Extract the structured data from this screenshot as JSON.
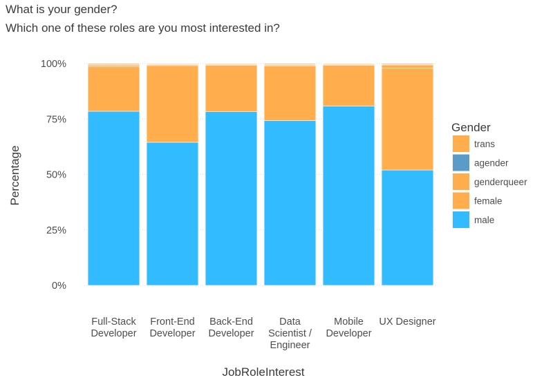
{
  "title_lines": [
    "What is your gender?",
    "Which one of these roles are you most interested in?"
  ],
  "chart_data": {
    "type": "bar",
    "stacked": true,
    "categories": [
      [
        "Full-Stack",
        "Developer"
      ],
      [
        "Front-End",
        "Developer"
      ],
      [
        "Back-End",
        "Developer"
      ],
      [
        "Data",
        "Scientist /",
        "Engineer"
      ],
      [
        "Mobile",
        "Developer"
      ],
      [
        "UX Designer"
      ]
    ],
    "series": [
      {
        "name": "male",
        "color": "#33BBFF",
        "values": [
          78.5,
          64.5,
          78.3,
          74.3,
          80.8,
          52.0
        ]
      },
      {
        "name": "female",
        "color": "#FFAD4D",
        "values": [
          20.2,
          34.6,
          20.9,
          24.6,
          18.4,
          45.9
        ]
      },
      {
        "name": "genderqueer",
        "color": "#FFAD4D",
        "values": [
          0.5,
          0.4,
          0.4,
          0.5,
          0.4,
          1.5
        ]
      },
      {
        "name": "agender",
        "color": "#5B9BC8",
        "values": [
          0.3,
          0.2,
          0.1,
          0.2,
          0.1,
          0.2
        ]
      },
      {
        "name": "trans",
        "color": "#FFAD4D",
        "values": [
          0.5,
          0.3,
          0.3,
          0.4,
          0.3,
          0.4
        ]
      }
    ],
    "legend_title": "Gender",
    "legend_order": [
      "trans",
      "agender",
      "genderqueer",
      "female",
      "male"
    ],
    "legend_position": "right",
    "xlabel": "JobRoleInterest",
    "ylabel": "Percentage",
    "ylim": [
      0,
      100
    ],
    "yticks": [
      0,
      25,
      50,
      75,
      100
    ],
    "ytick_labels": [
      "0%",
      "25%",
      "50%",
      "75%",
      "100%"
    ],
    "grid": true
  }
}
